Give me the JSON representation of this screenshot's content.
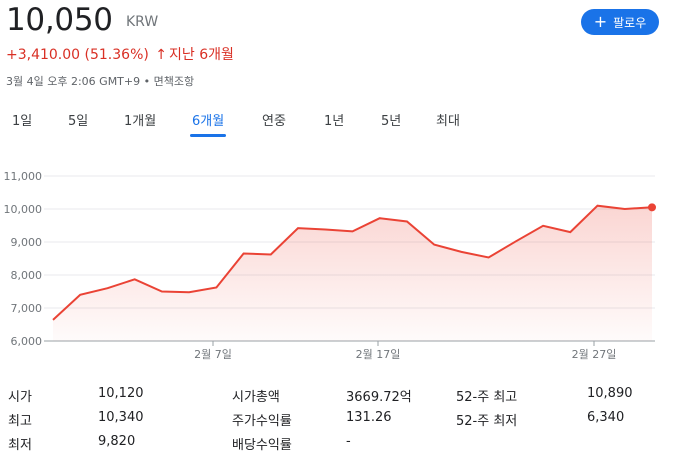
{
  "quote": {
    "price": "10,050",
    "currency": "KRW",
    "change_text": "+3,410.00 (51.36%)",
    "change_arrow": "↑",
    "change_period": "지난 6개월",
    "timestamp": "3월 4일 오후 2:06 GMT+9 • 면책조항"
  },
  "follow_button": {
    "icon": "plus-icon",
    "label": "팔로우"
  },
  "tabs": [
    {
      "label": "1일"
    },
    {
      "label": "5일"
    },
    {
      "label": "1개월"
    },
    {
      "label": "6개월",
      "active": true
    },
    {
      "label": "연중"
    },
    {
      "label": "1년"
    },
    {
      "label": "5년"
    },
    {
      "label": "최대"
    }
  ],
  "colors": {
    "line": "#ea4335",
    "fill": "#fce8e6",
    "accent": "#1a73e8",
    "negative_text": "#d93025"
  },
  "chart_data": {
    "type": "area",
    "y_ticks": [
      "11,000",
      "10,000",
      "9,000",
      "8,000",
      "7,000",
      "6,000"
    ],
    "x_ticks": [
      "2월 7일",
      "2월 17일",
      "2월 27일"
    ],
    "ylim": [
      6000,
      11000
    ],
    "values": [
      6640,
      7400,
      7600,
      7870,
      7500,
      7480,
      7620,
      8650,
      8620,
      9420,
      9380,
      9320,
      9720,
      9620,
      8920,
      8700,
      8530,
      9020,
      9490,
      9300,
      10100,
      10000,
      10050
    ]
  },
  "stats": {
    "col1": [
      {
        "label": "시가",
        "value": "10,120"
      },
      {
        "label": "최고",
        "value": "10,340"
      },
      {
        "label": "최저",
        "value": "9,820"
      }
    ],
    "col2": [
      {
        "label": "시가총액",
        "value": "3669.72억"
      },
      {
        "label": "주가수익률",
        "value": "131.26"
      },
      {
        "label": "배당수익률",
        "value": "-"
      }
    ],
    "col3": [
      {
        "label": "52-주 최고",
        "value": "10,890"
      },
      {
        "label": "52-주 최저",
        "value": "6,340"
      }
    ]
  }
}
